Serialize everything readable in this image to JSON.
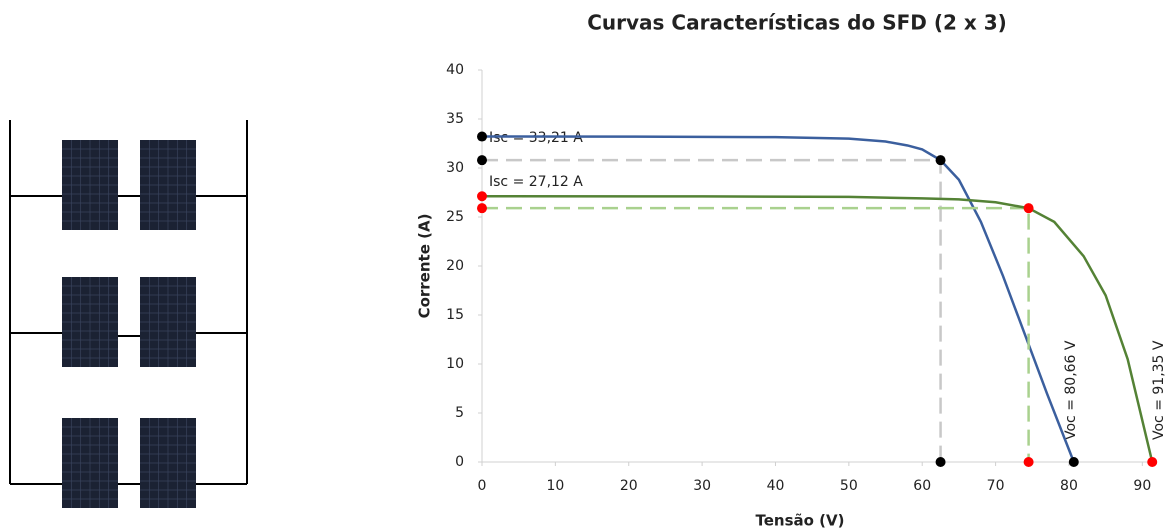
{
  "chart_data": {
    "type": "line",
    "title": "Curvas Características do SFD (2 x 3)",
    "x_label": "Tensão (V)",
    "y_label": "Corrente (A)",
    "xlim": [
      0,
      92
    ],
    "ylim": [
      0,
      40
    ],
    "xticks": [
      0,
      10,
      20,
      30,
      40,
      50,
      60,
      70,
      80,
      90
    ],
    "yticks": [
      0,
      5,
      10,
      15,
      20,
      25,
      30,
      35,
      40
    ],
    "series": [
      {
        "color": "#3b5f9e",
        "guide_color": "#c8c8c8",
        "marker_color": "#000000",
        "x": [
          0,
          20,
          40,
          50,
          55,
          58,
          60,
          62.5,
          65,
          68,
          71,
          74,
          77,
          80.66
        ],
        "values": [
          33.21,
          33.2,
          33.15,
          33.0,
          32.7,
          32.3,
          31.9,
          30.8,
          28.8,
          24.5,
          19,
          13,
          7,
          0
        ],
        "points": {
          "x": [
            0,
            0,
            62.5,
            62.5,
            80.66
          ],
          "values": [
            33.21,
            30.8,
            30.8,
            0,
            0
          ]
        }
      },
      {
        "color": "#548235",
        "guide_color": "#a9d18e",
        "marker_color": "#ff0000",
        "x": [
          0,
          30,
          50,
          60,
          65,
          70,
          74.5,
          78,
          82,
          85,
          88,
          91.35
        ],
        "values": [
          27.12,
          27.1,
          27.05,
          26.9,
          26.8,
          26.5,
          25.9,
          24.5,
          21,
          17,
          10.5,
          0
        ],
        "points": {
          "x": [
            0,
            0,
            74.5,
            74.5,
            91.35
          ],
          "values": [
            27.12,
            25.9,
            25.9,
            0,
            0
          ]
        }
      }
    ],
    "annotations": [
      "Isc = 33,21 A",
      "Isc = 27,12 A",
      "Voc = 80,66 V",
      "Voc = 91,35 V"
    ]
  }
}
